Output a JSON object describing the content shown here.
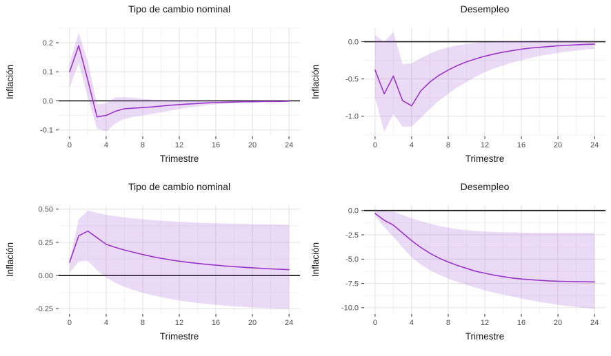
{
  "page": {
    "background": "#ffffff"
  },
  "styles": {
    "line_color": "#9933CC",
    "band_color": "rgba(163,88,214,0.22)",
    "grid_major_color": "#E5E5E5",
    "grid_minor_color": "#F1F1F1",
    "zero_line_color": "#1C1C1C",
    "tick_mark_color": "#333333",
    "tick_label_color": "#4D4D4D",
    "text_color": "#1A1A1A"
  },
  "chart_data": [
    {
      "type": "line",
      "title": "Tipo de cambio nominal",
      "xlabel": "Trimestre",
      "ylabel": "Inflación",
      "legend": "none",
      "grid": "major+minor",
      "x": [
        0,
        1,
        2,
        3,
        4,
        5,
        6,
        7,
        8,
        9,
        10,
        11,
        12,
        13,
        14,
        15,
        16,
        17,
        18,
        19,
        20,
        21,
        22,
        23,
        24
      ],
      "series": [
        {
          "name": "irf",
          "values": [
            0.1,
            0.19,
            0.07,
            -0.055,
            -0.05,
            -0.036,
            -0.027,
            -0.025,
            -0.023,
            -0.021,
            -0.018,
            -0.015,
            -0.013,
            -0.011,
            -0.009,
            -0.007,
            -0.006,
            -0.005,
            -0.004,
            -0.003,
            -0.003,
            -0.002,
            -0.002,
            -0.002,
            -0.001
          ]
        }
      ],
      "band": {
        "upper": [
          0.13,
          0.235,
          0.135,
          -0.012,
          -0.008,
          0.012,
          0.013,
          0.011,
          0.007,
          0.004,
          0.003,
          0.002,
          0.002,
          0.001,
          0.001,
          0.001,
          0,
          0,
          0,
          0,
          0,
          0,
          0,
          0,
          0
        ],
        "lower": [
          0.045,
          0.13,
          0.01,
          -0.095,
          -0.105,
          -0.078,
          -0.062,
          -0.055,
          -0.05,
          -0.045,
          -0.04,
          -0.034,
          -0.028,
          -0.023,
          -0.019,
          -0.015,
          -0.012,
          -0.01,
          -0.008,
          -0.007,
          -0.006,
          -0.005,
          -0.004,
          -0.004,
          -0.003
        ]
      },
      "zero_line": 0,
      "xlim": [
        -1.2,
        25.2
      ],
      "ylim": [
        -0.122,
        0.252
      ],
      "xticks": {
        "values": [
          0,
          4,
          8,
          12,
          16,
          20,
          24
        ],
        "labels": [
          "0",
          "4",
          "8",
          "12",
          "16",
          "20",
          "24"
        ]
      },
      "yticks": {
        "values": [
          -0.1,
          0,
          0.1,
          0.2
        ],
        "labels": [
          "-0.1",
          "0.0",
          "0.1",
          "0.2"
        ]
      }
    },
    {
      "type": "line",
      "title": "Desempleo",
      "xlabel": "Trimestre",
      "ylabel": "Inflación",
      "legend": "none",
      "grid": "major+minor",
      "x": [
        0,
        1,
        2,
        3,
        4,
        5,
        6,
        7,
        8,
        9,
        10,
        11,
        12,
        13,
        14,
        15,
        16,
        17,
        18,
        19,
        20,
        21,
        22,
        23,
        24
      ],
      "series": [
        {
          "name": "irf",
          "values": [
            -0.38,
            -0.7,
            -0.46,
            -0.79,
            -0.86,
            -0.66,
            -0.54,
            -0.45,
            -0.38,
            -0.32,
            -0.27,
            -0.23,
            -0.195,
            -0.165,
            -0.14,
            -0.12,
            -0.1,
            -0.085,
            -0.075,
            -0.065,
            -0.055,
            -0.048,
            -0.042,
            -0.036,
            -0.032
          ]
        }
      ],
      "band": {
        "upper": [
          0.09,
          0,
          0.13,
          -0.3,
          -0.29,
          -0.22,
          -0.16,
          -0.11,
          -0.075,
          -0.05,
          -0.03,
          -0.015,
          -0.005,
          0,
          0.005,
          0.008,
          0.01,
          0.012,
          0.013,
          0.014,
          0.015,
          0.015,
          0.015,
          0.015,
          0.015
        ],
        "lower": [
          -0.75,
          -1.21,
          -0.97,
          -1.14,
          -1.14,
          -1.02,
          -0.9,
          -0.79,
          -0.7,
          -0.61,
          -0.54,
          -0.47,
          -0.41,
          -0.36,
          -0.32,
          -0.28,
          -0.25,
          -0.22,
          -0.19,
          -0.17,
          -0.15,
          -0.135,
          -0.12,
          -0.105,
          -0.095
        ]
      },
      "zero_line": 0,
      "xlim": [
        -1.2,
        25.2
      ],
      "ylim": [
        -1.27,
        0.19
      ],
      "xticks": {
        "values": [
          0,
          4,
          8,
          12,
          16,
          20,
          24
        ],
        "labels": [
          "0",
          "4",
          "8",
          "12",
          "16",
          "20",
          "24"
        ]
      },
      "yticks": {
        "values": [
          -1.0,
          -0.5,
          0
        ],
        "labels": [
          "-1.0",
          "-0.5",
          "0.0"
        ]
      }
    },
    {
      "type": "line",
      "title": "Tipo de cambio nominal",
      "xlabel": "Trimestre",
      "ylabel": "Inflación",
      "legend": "none",
      "grid": "major+minor",
      "x": [
        0,
        1,
        2,
        3,
        4,
        5,
        6,
        7,
        8,
        9,
        10,
        11,
        12,
        13,
        14,
        15,
        16,
        17,
        18,
        19,
        20,
        21,
        22,
        23,
        24
      ],
      "series": [
        {
          "name": "irf_acumulada",
          "values": [
            0.1,
            0.3,
            0.335,
            0.285,
            0.235,
            0.212,
            0.192,
            0.175,
            0.158,
            0.143,
            0.13,
            0.118,
            0.108,
            0.099,
            0.091,
            0.084,
            0.078,
            0.072,
            0.067,
            0.062,
            0.058,
            0.054,
            0.05,
            0.047,
            0.044
          ]
        }
      ],
      "band": {
        "upper": [
          0.115,
          0.425,
          0.49,
          0.472,
          0.458,
          0.447,
          0.438,
          0.43,
          0.424,
          0.418,
          0.413,
          0.409,
          0.405,
          0.402,
          0.399,
          0.396,
          0.394,
          0.392,
          0.39,
          0.389,
          0.387,
          0.386,
          0.385,
          0.384,
          0.383
        ],
        "lower": [
          0.02,
          0.105,
          0.11,
          0.04,
          -0.015,
          -0.055,
          -0.085,
          -0.11,
          -0.13,
          -0.148,
          -0.163,
          -0.176,
          -0.188,
          -0.198,
          -0.207,
          -0.214,
          -0.221,
          -0.227,
          -0.232,
          -0.237,
          -0.241,
          -0.244,
          -0.247,
          -0.25,
          -0.252
        ]
      },
      "zero_line": 0,
      "xlim": [
        -1.2,
        25.2
      ],
      "ylim": [
        -0.29,
        0.53
      ],
      "xticks": {
        "values": [
          0,
          4,
          8,
          12,
          16,
          20,
          24
        ],
        "labels": [
          "0",
          "4",
          "8",
          "12",
          "16",
          "20",
          "24"
        ]
      },
      "yticks": {
        "values": [
          -0.25,
          0,
          0.25,
          0.5
        ],
        "labels": [
          "-0.25",
          "0.00",
          "0.25",
          "0.50"
        ]
      }
    },
    {
      "type": "line",
      "title": "Desempleo",
      "xlabel": "Trimestre",
      "ylabel": "Inflación",
      "legend": "none",
      "grid": "major+minor",
      "x": [
        0,
        1,
        2,
        3,
        4,
        5,
        6,
        7,
        8,
        9,
        10,
        11,
        12,
        13,
        14,
        15,
        16,
        17,
        18,
        19,
        20,
        21,
        22,
        23,
        24
      ],
      "series": [
        {
          "name": "irf_acumulada",
          "values": [
            -0.3,
            -1.0,
            -1.5,
            -2.3,
            -3.1,
            -3.8,
            -4.4,
            -4.9,
            -5.3,
            -5.65,
            -5.95,
            -6.25,
            -6.45,
            -6.65,
            -6.8,
            -6.95,
            -7.05,
            -7.12,
            -7.18,
            -7.24,
            -7.28,
            -7.3,
            -7.32,
            -7.33,
            -7.35
          ]
        }
      ],
      "band": {
        "upper": [
          -0.02,
          -0.06,
          -0.12,
          -0.45,
          -0.8,
          -1.1,
          -1.35,
          -1.58,
          -1.77,
          -1.92,
          -2.02,
          -2.1,
          -2.16,
          -2.2,
          -2.23,
          -2.25,
          -2.27,
          -2.28,
          -2.29,
          -2.3,
          -2.3,
          -2.3,
          -2.3,
          -2.3,
          -2.3
        ],
        "lower": [
          -0.55,
          -1.7,
          -2.7,
          -3.8,
          -4.8,
          -5.55,
          -6.15,
          -6.6,
          -7.0,
          -7.35,
          -7.65,
          -7.95,
          -8.2,
          -8.45,
          -8.65,
          -8.85,
          -9.05,
          -9.25,
          -9.4,
          -9.55,
          -9.7,
          -9.82,
          -9.93,
          -10.03,
          -10.12
        ]
      },
      "zero_line": 0,
      "xlim": [
        -1.2,
        25.2
      ],
      "ylim": [
        -10.65,
        0.55
      ],
      "xticks": {
        "values": [
          0,
          4,
          8,
          12,
          16,
          20,
          24
        ],
        "labels": [
          "0",
          "4",
          "8",
          "12",
          "16",
          "20",
          "24"
        ]
      },
      "yticks": {
        "values": [
          -10.0,
          -7.5,
          -5.0,
          -2.5,
          0
        ],
        "labels": [
          "-10.0",
          "-7.5",
          "-5.0",
          "-2.5",
          "0.0"
        ]
      }
    }
  ]
}
